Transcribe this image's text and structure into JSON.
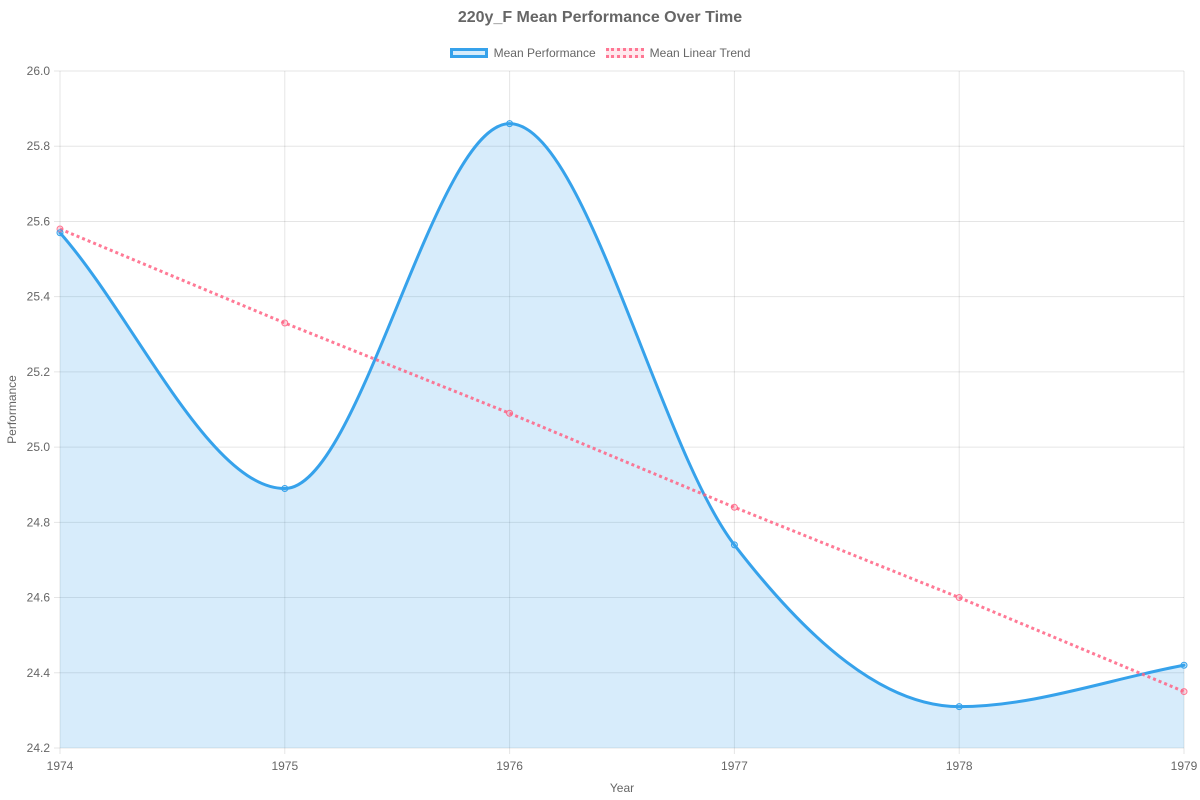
{
  "chart_data": {
    "type": "line",
    "title": "220y_F Mean Performance Over Time",
    "xlabel": "Year",
    "ylabel": "Performance",
    "categories": [
      "1974",
      "1975",
      "1976",
      "1977",
      "1978",
      "1979"
    ],
    "ylim": [
      24.2,
      26.0
    ],
    "yticks": [
      "24.2",
      "24.4",
      "24.6",
      "24.8",
      "25.0",
      "25.2",
      "25.4",
      "25.6",
      "25.8",
      "26.0"
    ],
    "grid": true,
    "legend_position": "top",
    "series": [
      {
        "name": "Mean Performance",
        "values": [
          25.57,
          24.89,
          25.86,
          24.74,
          24.31,
          24.42
        ],
        "color": "#36a2eb",
        "fill": "rgba(54,162,235,0.2)",
        "style": "solid"
      },
      {
        "name": "Mean Linear Trend",
        "values": [
          25.58,
          25.33,
          25.09,
          24.84,
          24.6,
          24.35
        ],
        "color": "#ff6384",
        "style": "dotted"
      }
    ]
  }
}
